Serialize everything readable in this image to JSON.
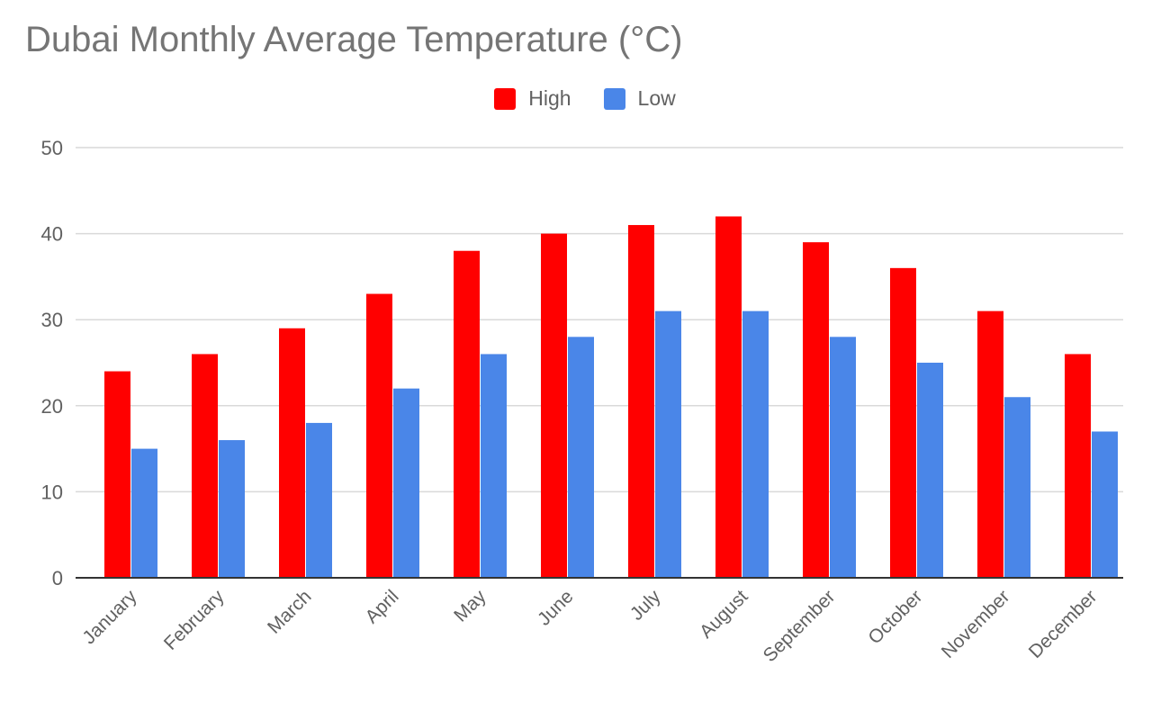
{
  "chart_data": {
    "type": "bar",
    "title": "Dubai Monthly Average Temperature (°C)",
    "xlabel": "",
    "ylabel": "",
    "ylim": [
      0,
      50
    ],
    "yticks": [
      0,
      10,
      20,
      30,
      40,
      50
    ],
    "grid": true,
    "legend_position": "top",
    "categories": [
      "January",
      "February",
      "March",
      "April",
      "May",
      "June",
      "July",
      "August",
      "September",
      "October",
      "November",
      "December"
    ],
    "series": [
      {
        "name": "High",
        "color": "#ff0000",
        "values": [
          24,
          26,
          29,
          33,
          38,
          40,
          41,
          42,
          39,
          36,
          31,
          26
        ]
      },
      {
        "name": "Low",
        "color": "#4a86e8",
        "values": [
          15,
          16,
          18,
          22,
          26,
          28,
          31,
          31,
          28,
          25,
          21,
          17
        ]
      }
    ]
  }
}
